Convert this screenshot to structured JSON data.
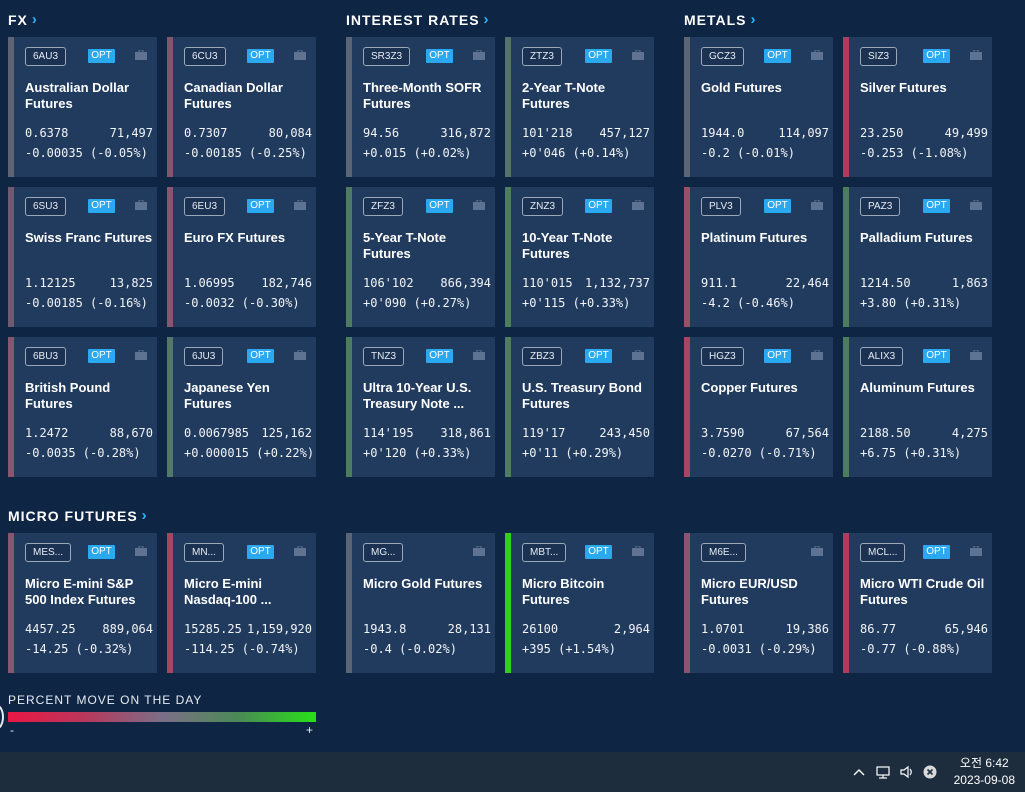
{
  "sections": {
    "fx": "FX",
    "rates": "INTEREST RATES",
    "metals": "METALS",
    "micro": "MICRO FUTURES"
  },
  "opt_label": "OPT",
  "legend": {
    "title": "PERCENT MOVE ON THE DAY",
    "minus": "-",
    "plus": "+"
  },
  "cards": [
    {
      "code": "6AU3",
      "opt": true,
      "name": "Australian Dollar Futures",
      "price": "0.6378",
      "volume": "71,497",
      "change": "-0.00035 (-0.05%)",
      "pct": -0.05,
      "accent": "#5e6476"
    },
    {
      "code": "6CU3",
      "opt": true,
      "name": "Canadian Dollar Futures",
      "price": "0.7307",
      "volume": "80,084",
      "change": "-0.00185 (-0.25%)",
      "pct": -0.25,
      "accent": "#84566e"
    },
    {
      "code": "SR3Z3",
      "opt": true,
      "name": "Three-Month SOFR Futures",
      "price": "94.56",
      "volume": "316,872",
      "change": "+0.015 (+0.02%)",
      "pct": 0.02,
      "accent": "#5a6675"
    },
    {
      "code": "ZTZ3",
      "opt": true,
      "name": "2-Year T-Note Futures",
      "price": "101'218",
      "volume": "457,127",
      "change": "+0'046 (+0.14%)",
      "pct": 0.14,
      "accent": "#56726a"
    },
    {
      "code": "GCZ3",
      "opt": true,
      "name": "Gold Futures",
      "price": "1944.0",
      "volume": "114,097",
      "change": "-0.2 (-0.01%)",
      "pct": -0.01,
      "accent": "#5a6675"
    },
    {
      "code": "SIZ3",
      "opt": true,
      "name": "Silver Futures",
      "price": "23.250",
      "volume": "49,499",
      "change": "-0.253 (-1.08%)",
      "pct": -1.08,
      "accent": "#b13a5e"
    },
    {
      "code": "6SU3",
      "opt": true,
      "name": "Swiss Franc Futures",
      "price": "1.12125",
      "volume": "13,825",
      "change": "-0.00185 (-0.16%)",
      "pct": -0.16,
      "accent": "#6e5b71"
    },
    {
      "code": "6EU3",
      "opt": true,
      "name": "Euro FX Futures",
      "price": "1.06995",
      "volume": "182,746",
      "change": "-0.0032 (-0.30%)",
      "pct": -0.3,
      "accent": "#8a5570"
    },
    {
      "code": "ZFZ3",
      "opt": true,
      "name": "5-Year T-Note Futures",
      "price": "106'102",
      "volume": "866,394",
      "change": "+0'090 (+0.27%)",
      "pct": 0.27,
      "accent": "#4f7b61"
    },
    {
      "code": "ZNZ3",
      "opt": true,
      "name": "10-Year T-Note Futures",
      "price": "110'015",
      "volume": "1,132,737",
      "change": "+0'115 (+0.33%)",
      "pct": 0.33,
      "accent": "#4c7e5e"
    },
    {
      "code": "PLV3",
      "opt": true,
      "name": "Platinum Futures",
      "price": "911.1",
      "volume": "22,464",
      "change": "-4.2 (-0.46%)",
      "pct": -0.46,
      "accent": "#985068"
    },
    {
      "code": "PAZ3",
      "opt": true,
      "name": "Palladium Futures",
      "price": "1214.50",
      "volume": "1,863",
      "change": "+3.80 (+0.31%)",
      "pct": 0.31,
      "accent": "#4c7e5e"
    },
    {
      "code": "6BU3",
      "opt": true,
      "name": "British Pound Futures",
      "price": "1.2472",
      "volume": "88,670",
      "change": "-0.0035 (-0.28%)",
      "pct": -0.28,
      "accent": "#8a5570"
    },
    {
      "code": "6JU3",
      "opt": true,
      "name": "Japanese Yen Futures",
      "price": "0.0067985",
      "volume": "125,162",
      "change": "+0.000015 (+0.22%)",
      "pct": 0.22,
      "accent": "#52786a"
    },
    {
      "code": "TNZ3",
      "opt": true,
      "name": "Ultra 10-Year U.S. Treasury Note ...",
      "price": "114'195",
      "volume": "318,861",
      "change": "+0'120 (+0.33%)",
      "pct": 0.33,
      "accent": "#4c7e5e"
    },
    {
      "code": "ZBZ3",
      "opt": true,
      "name": "U.S. Treasury Bond Futures",
      "price": "119'17",
      "volume": "243,450",
      "change": "+0'11 (+0.29%)",
      "pct": 0.29,
      "accent": "#4f7b61"
    },
    {
      "code": "HGZ3",
      "opt": true,
      "name": "Copper Futures",
      "price": "3.7590",
      "volume": "67,564",
      "change": "-0.0270 (-0.71%)",
      "pct": -0.71,
      "accent": "#a44664"
    },
    {
      "code": "ALIX3",
      "opt": true,
      "name": "Aluminum Futures",
      "price": "2188.50",
      "volume": "4,275",
      "change": "+6.75 (+0.31%)",
      "pct": 0.31,
      "accent": "#4c7e5e"
    },
    {
      "code": "MES...",
      "opt": true,
      "name": "Micro E-mini S&P 500 Index Futures",
      "price": "4457.25",
      "volume": "889,064",
      "change": "-14.25 (-0.32%)",
      "pct": -0.32,
      "accent": "#8a5570"
    },
    {
      "code": "MN...",
      "opt": true,
      "name": "Micro E-mini Nasdaq-100 ...",
      "price": "15285.25",
      "volume": "1,159,920",
      "change": "-114.25 (-0.74%)",
      "pct": -0.74,
      "accent": "#a44664"
    },
    {
      "code": "MG...",
      "opt": false,
      "name": "Micro Gold Futures",
      "price": "1943.8",
      "volume": "28,131",
      "change": "-0.4 (-0.02%)",
      "pct": -0.02,
      "accent": "#5a6675"
    },
    {
      "code": "MBT...",
      "opt": true,
      "name": "Micro Bitcoin Futures",
      "price": "26100",
      "volume": "2,964",
      "change": "+395 (+1.54%)",
      "pct": 1.54,
      "accent": "#2fd11c"
    },
    {
      "code": "M6E...",
      "opt": false,
      "name": "Micro EUR/USD Futures",
      "price": "1.0701",
      "volume": "19,386",
      "change": "-0.0031 (-0.29%)",
      "pct": -0.29,
      "accent": "#8a5570"
    },
    {
      "code": "MCL...",
      "opt": true,
      "name": "Micro WTI Crude Oil Futures",
      "price": "86.77",
      "volume": "65,946",
      "change": "-0.77 (-0.88%)",
      "pct": -0.88,
      "accent": "#b13a5e"
    }
  ],
  "taskbar": {
    "time": "오전 6:42",
    "date": "2023-09-08"
  },
  "tray_icons": [
    "chevron-up-icon",
    "network-icon",
    "speaker-icon",
    "close-circle-icon"
  ]
}
